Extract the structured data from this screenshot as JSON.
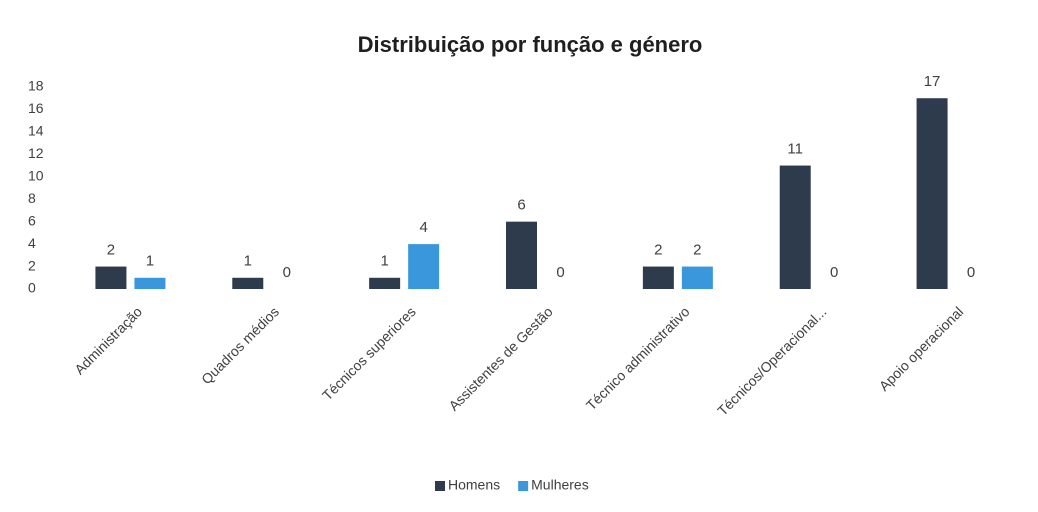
{
  "chart_data": {
    "type": "bar",
    "title": "Distribuição por função e género",
    "categories": [
      "Administração",
      "Quadros médios",
      "Técnicos superiores",
      "Assistentes de Gestão",
      "Técnico administrativo",
      "Técnicos/Operacional...",
      "Apoio operacional"
    ],
    "series": [
      {
        "name": "Homens",
        "color": "#2e3b4c",
        "values": [
          2,
          1,
          1,
          6,
          2,
          11,
          17
        ]
      },
      {
        "name": "Mulheres",
        "color": "#3b97dc",
        "values": [
          1,
          0,
          4,
          0,
          2,
          0,
          0
        ]
      }
    ],
    "ylim": [
      0,
      18
    ],
    "yticks": [
      0,
      2,
      4,
      6,
      8,
      10,
      12,
      14,
      16,
      18
    ],
    "grid": false,
    "legend": "bottom"
  }
}
